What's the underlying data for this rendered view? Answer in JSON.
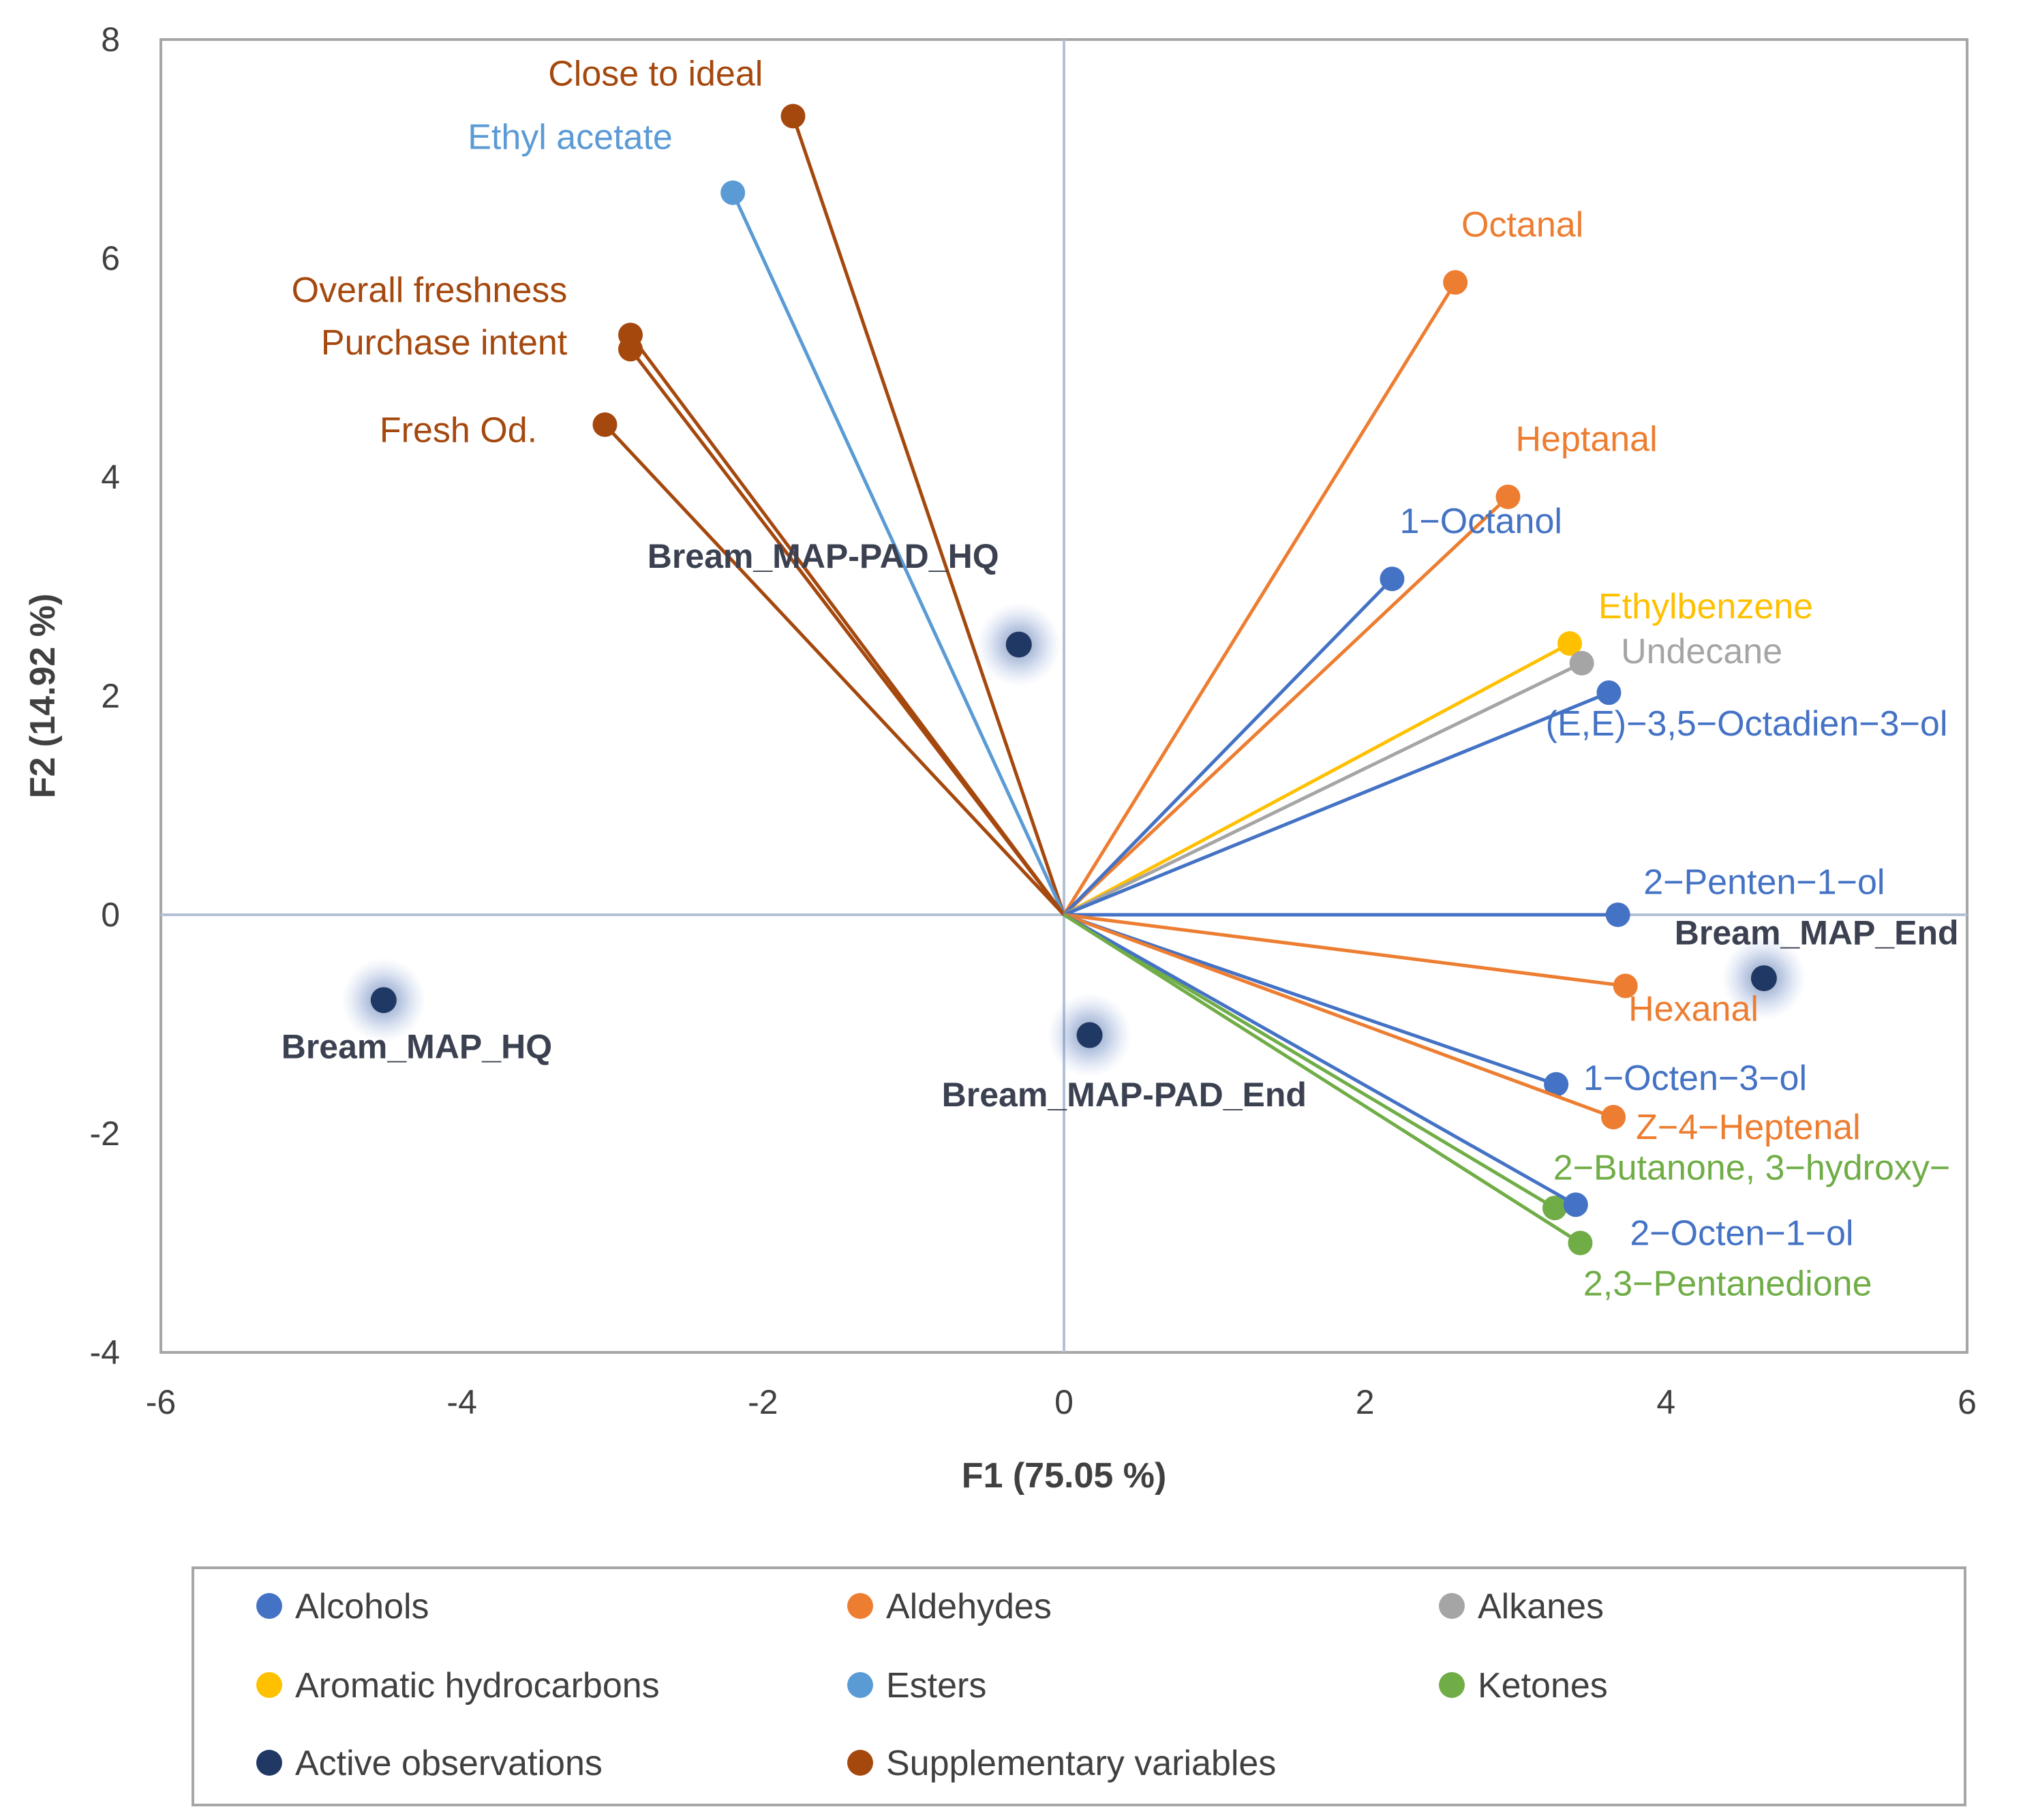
{
  "chart_data": {
    "type": "scatter",
    "subtype": "biplot",
    "xlabel": "F1 (75.05 %)",
    "ylabel": "F2 (14.92 %)",
    "xlim": [
      -6,
      6
    ],
    "ylim": [
      -4,
      8
    ],
    "xticks": [
      "-6",
      "-4",
      "-2",
      "0",
      "2",
      "4",
      "6"
    ],
    "yticks": [
      "-4",
      "-2",
      "0",
      "2",
      "4",
      "6",
      "8"
    ],
    "groups": {
      "Alcohols": "#4472c4",
      "Aldehydes": "#ed7d31",
      "Alkanes": "#a5a5a5",
      "Aromatic hydrocarbons": "#ffc000",
      "Esters": "#5b9bd5",
      "Ketones": "#70ad47",
      "Active observations": "#1f3864",
      "Supplementary variables": "#a5480e"
    },
    "variables": [
      {
        "label": "Close to ideal",
        "group": "Supplementary variables",
        "x": -1.8,
        "y": 7.3,
        "anchor": "end",
        "ldx": -2.0,
        "ldy": 7.58
      },
      {
        "label": "Ethyl acetate",
        "group": "Esters",
        "x": -2.2,
        "y": 6.6,
        "anchor": "end",
        "ldx": -2.6,
        "ldy": 7.0
      },
      {
        "label": "Overall freshness",
        "group": "Supplementary variables",
        "x": -2.88,
        "y": 5.3,
        "anchor": "end",
        "ldx": -3.3,
        "ldy": 5.6
      },
      {
        "label": "Purchase intent",
        "group": "Supplementary variables",
        "x": -2.88,
        "y": 5.17,
        "anchor": "end",
        "ldx": -3.3,
        "ldy": 5.12
      },
      {
        "label": "Fresh Od.",
        "group": "Supplementary variables",
        "x": -3.05,
        "y": 4.48,
        "anchor": "end",
        "ldx": -3.5,
        "ldy": 4.32
      },
      {
        "label": "Octanal",
        "group": "Aldehydes",
        "x": 2.6,
        "y": 5.78,
        "anchor": "start",
        "ldx": 2.64,
        "ldy": 6.2
      },
      {
        "label": "Heptanal",
        "group": "Aldehydes",
        "x": 2.95,
        "y": 3.82,
        "anchor": "start",
        "ldx": 3.0,
        "ldy": 4.24
      },
      {
        "label": "1−Octanol",
        "group": "Alcohols",
        "x": 2.18,
        "y": 3.07,
        "anchor": "start",
        "ldx": 2.23,
        "ldy": 3.49
      },
      {
        "label": "Ethylbenzene",
        "group": "Aromatic hydrocarbons",
        "x": 3.36,
        "y": 2.48,
        "anchor": "start",
        "ldx": 3.55,
        "ldy": 2.71
      },
      {
        "label": "Undecane",
        "group": "Alkanes",
        "x": 3.44,
        "y": 2.3,
        "anchor": "start",
        "ldx": 3.7,
        "ldy": 2.3
      },
      {
        "label": "(E,E)−3,5−Octadien−3−ol",
        "group": "Alcohols",
        "x": 3.62,
        "y": 2.03,
        "anchor": "start",
        "ldx": 3.2,
        "ldy": 1.64
      },
      {
        "label": "2−Penten−1−ol",
        "group": "Alcohols",
        "x": 3.68,
        "y": 0.0,
        "anchor": "start",
        "ldx": 3.85,
        "ldy": 0.19
      },
      {
        "label": "Hexanal",
        "group": "Aldehydes",
        "x": 3.73,
        "y": -0.65,
        "anchor": "start",
        "ldx": 3.75,
        "ldy": -0.97
      },
      {
        "label": "1−Octen−3−ol",
        "group": "Alcohols",
        "x": 3.27,
        "y": -1.55,
        "anchor": "start",
        "ldx": 3.45,
        "ldy": -1.6
      },
      {
        "label": "Z−4−Heptenal",
        "group": "Aldehydes",
        "x": 3.65,
        "y": -1.85,
        "anchor": "start",
        "ldx": 3.8,
        "ldy": -2.05
      },
      {
        "label": "2−Butanone, 3−hydroxy−",
        "group": "Ketones",
        "x": 3.26,
        "y": -2.68,
        "anchor": "start",
        "ldx": 3.25,
        "ldy": -2.42
      },
      {
        "label": "2−Octen−1−ol",
        "group": "Alcohols",
        "x": 3.4,
        "y": -2.65,
        "anchor": "start",
        "ldx": 3.76,
        "ldy": -3.02
      },
      {
        "label": "2,3−Pentanedione",
        "group": "Ketones",
        "x": 3.43,
        "y": -3.0,
        "anchor": "start",
        "ldx": 3.45,
        "ldy": -3.48
      }
    ],
    "observations": [
      {
        "label": "Bream_MAP-PAD_HQ",
        "x": -0.3,
        "y": 2.47,
        "anchor": "middle",
        "ldx": -1.6,
        "ldy": 3.17
      },
      {
        "label": "Bream_MAP_End",
        "x": 4.65,
        "y": -0.58,
        "anchor": "middle",
        "ldx": 5.0,
        "ldy": -0.27
      },
      {
        "label": "Bream_MAP_HQ",
        "x": -4.52,
        "y": -0.78,
        "anchor": "middle",
        "ldx": -4.3,
        "ldy": -1.31
      },
      {
        "label": "Bream_MAP-PAD_End",
        "x": 0.17,
        "y": -1.1,
        "anchor": "middle",
        "ldx": 0.4,
        "ldy": -1.75
      }
    ],
    "legend": [
      "Alcohols",
      "Aldehydes",
      "Alkanes",
      "Aromatic hydrocarbons",
      "Esters",
      "Ketones",
      "Active observations",
      "Supplementary variables"
    ],
    "legend_position": "bottom",
    "grid": false
  }
}
